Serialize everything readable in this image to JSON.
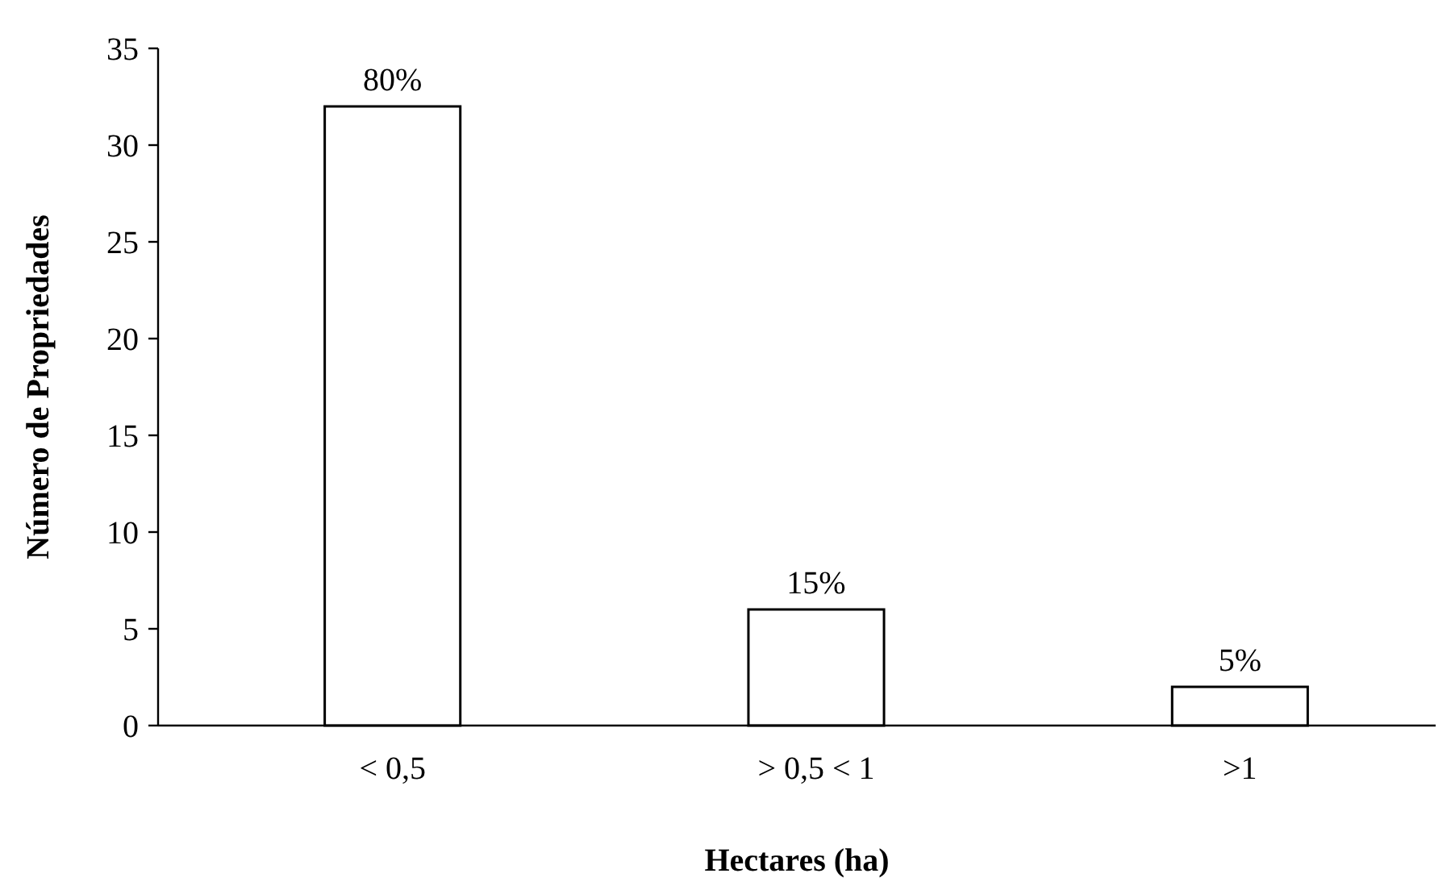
{
  "chart_data": {
    "type": "bar",
    "xlabel": "Hectares (ha)",
    "ylabel": "Número de Propriedades",
    "categories": [
      "< 0,5",
      "> 0,5 < 1",
      ">1"
    ],
    "values": [
      32,
      6,
      2
    ],
    "color": "#ffffff",
    "annotations": [
      {
        "text": "80%",
        "x": "< 0,5",
        "y": 32
      },
      {
        "text": "15%",
        "x": "> 0,5 < 1",
        "y": 6
      },
      {
        "text": "5%",
        "x": ">1",
        "y": 2
      }
    ],
    "ylim": [
      0,
      35
    ],
    "yticks": [
      0,
      5,
      10,
      15,
      20,
      25,
      30,
      35
    ],
    "grid": false
  }
}
